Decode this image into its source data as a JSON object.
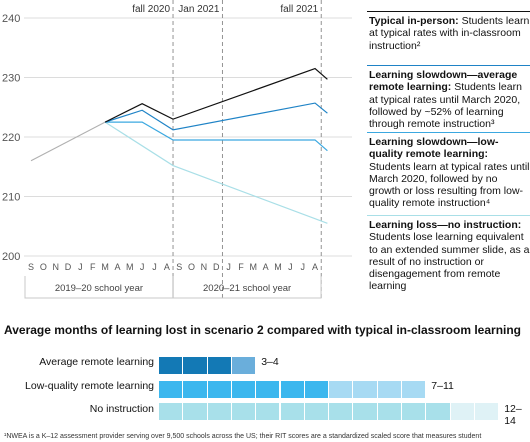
{
  "chart_data": [
    {
      "type": "line",
      "y_ticks": [
        "240",
        "230",
        "220",
        "210",
        "200"
      ],
      "ylim": [
        200,
        240
      ],
      "grid": true,
      "x_months": [
        "S",
        "O",
        "N",
        "D",
        "J",
        "F",
        "M",
        "A",
        "M",
        "J",
        "J",
        "A",
        "S",
        "O",
        "N",
        "D",
        "J",
        "F",
        "M",
        "A",
        "M",
        "J",
        "J",
        "A"
      ],
      "x_groups": [
        "2019–20 school year",
        "2020–21 school year"
      ],
      "markers": [
        {
          "label": "fall 2020",
          "at": 12
        },
        {
          "label": "Jan 2021",
          "at": 16
        },
        {
          "label": "fall 2021",
          "at": 24
        }
      ],
      "base_path": {
        "x": [
          0,
          6
        ],
        "y": [
          216,
          222.5
        ]
      },
      "series": [
        {
          "color": "#111111",
          "x": [
            6,
            9,
            11.5,
            23,
            24
          ],
          "y": [
            222.5,
            225.6,
            223,
            231.5,
            229.7
          ]
        },
        {
          "color": "#1f83c6",
          "x": [
            6,
            9,
            11.5,
            23,
            24
          ],
          "y": [
            222.5,
            224.5,
            221.2,
            225.7,
            224
          ]
        },
        {
          "color": "#3ba8e0",
          "x": [
            6,
            9,
            11.5,
            23,
            24
          ],
          "y": [
            222.5,
            222.5,
            219.5,
            219.5,
            217.7
          ]
        },
        {
          "color": "#a9dfe7",
          "x": [
            6,
            11.5,
            24
          ],
          "y": [
            222.5,
            215.2,
            205.5
          ]
        }
      ]
    },
    {
      "type": "bar",
      "title": "Average months of learning lost in scenario 2 compared with typical in-classroom learning",
      "categories": [
        "Average remote learning",
        "Low-quality remote learning",
        "No instruction"
      ],
      "range_labels": [
        "3–4",
        "7–11",
        "12–14"
      ],
      "ranges": [
        [
          3,
          4
        ],
        [
          7,
          11
        ],
        [
          12,
          14
        ]
      ],
      "xlim": [
        0,
        14
      ],
      "colors": {
        "avg": "#1379b5",
        "avg_light": "#6aaedb",
        "low": "#3cb7ee",
        "low_light": "#a7daf3",
        "none": "#a8e0ea",
        "none_light": "#dff2f6"
      }
    }
  ],
  "legend": [
    {
      "title": "Typical in-person:",
      "text": " Students learn at typical rates with in-classroom instruction²",
      "color": "#111111"
    },
    {
      "title": "Learning slowdown—average remote learning:",
      "text": " Students learn at typical rates until March 2020, followed by ~52% of learning through remote instruction³",
      "color": "#1f83c6"
    },
    {
      "title": "Learning slowdown—low-quality remote learning:",
      "text": " Students learn at typical rates until March 2020, followed by no growth or loss resulting from low-quality remote instruction⁴",
      "color": "#3ba8e0"
    },
    {
      "title": "Learning loss—no instruction:",
      "text": " Students lose learning equivalent to an extended summer slide, as a result of no instruction or disengagement from remote learning",
      "color": "#a9dfe7"
    }
  ],
  "footnote": "¹NWEA is a K–12 assessment provider serving over 9,500 schools across the US; their RIT scores are a standardized scaled score that measures student"
}
